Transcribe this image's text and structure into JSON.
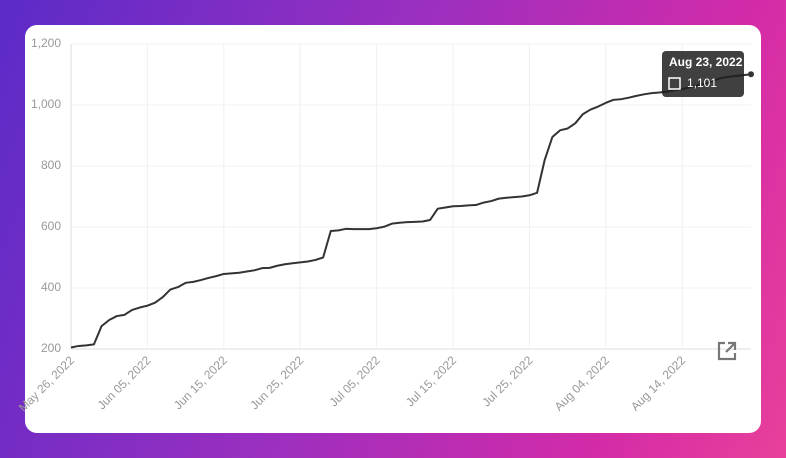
{
  "chart_data": {
    "type": "line",
    "x": [
      "2022-05-26",
      "2022-05-27",
      "2022-05-28",
      "2022-05-29",
      "2022-05-30",
      "2022-05-31",
      "2022-06-01",
      "2022-06-02",
      "2022-06-03",
      "2022-06-04",
      "2022-06-05",
      "2022-06-06",
      "2022-06-07",
      "2022-06-08",
      "2022-06-09",
      "2022-06-10",
      "2022-06-11",
      "2022-06-12",
      "2022-06-13",
      "2022-06-14",
      "2022-06-15",
      "2022-06-16",
      "2022-06-17",
      "2022-06-18",
      "2022-06-19",
      "2022-06-20",
      "2022-06-21",
      "2022-06-22",
      "2022-06-23",
      "2022-06-24",
      "2022-06-25",
      "2022-06-26",
      "2022-06-27",
      "2022-06-28",
      "2022-06-29",
      "2022-06-30",
      "2022-07-01",
      "2022-07-02",
      "2022-07-03",
      "2022-07-04",
      "2022-07-05",
      "2022-07-06",
      "2022-07-07",
      "2022-07-08",
      "2022-07-09",
      "2022-07-10",
      "2022-07-11",
      "2022-07-12",
      "2022-07-13",
      "2022-07-14",
      "2022-07-15",
      "2022-07-16",
      "2022-07-17",
      "2022-07-18",
      "2022-07-19",
      "2022-07-20",
      "2022-07-21",
      "2022-07-22",
      "2022-07-23",
      "2022-07-24",
      "2022-07-25",
      "2022-07-26",
      "2022-07-27",
      "2022-07-28",
      "2022-07-29",
      "2022-07-30",
      "2022-07-31",
      "2022-08-01",
      "2022-08-02",
      "2022-08-03",
      "2022-08-04",
      "2022-08-05",
      "2022-08-06",
      "2022-08-07",
      "2022-08-08",
      "2022-08-09",
      "2022-08-10",
      "2022-08-11",
      "2022-08-12",
      "2022-08-13",
      "2022-08-14",
      "2022-08-15",
      "2022-08-16",
      "2022-08-17",
      "2022-08-18",
      "2022-08-19",
      "2022-08-20",
      "2022-08-21",
      "2022-08-22",
      "2022-08-23"
    ],
    "values": [
      205,
      210,
      212,
      215,
      275,
      295,
      308,
      312,
      328,
      336,
      342,
      352,
      370,
      395,
      403,
      417,
      420,
      426,
      433,
      439,
      446,
      448,
      450,
      454,
      458,
      465,
      466,
      473,
      478,
      481,
      484,
      487,
      492,
      500,
      587,
      589,
      594,
      593,
      593,
      593,
      596,
      601,
      611,
      614,
      616,
      617,
      618,
      623,
      660,
      664,
      668,
      669,
      671,
      672,
      680,
      685,
      693,
      696,
      698,
      700,
      704,
      712,
      820,
      895,
      917,
      923,
      940,
      970,
      985,
      995,
      1007,
      1017,
      1019,
      1024,
      1030,
      1035,
      1039,
      1041,
      1044,
      1048,
      1052,
      1058,
      1065,
      1070,
      1080,
      1088,
      1092,
      1095,
      1098,
      1101
    ],
    "color": "#333333",
    "xlim": [
      "2022-05-26",
      "2022-08-23"
    ],
    "xticks": [
      {
        "value": "2022-05-26",
        "label": "May 26, 2022"
      },
      {
        "value": "2022-06-05",
        "label": "Jun 05, 2022"
      },
      {
        "value": "2022-06-15",
        "label": "Jun 15, 2022"
      },
      {
        "value": "2022-06-25",
        "label": "Jun 25, 2022"
      },
      {
        "value": "2022-07-05",
        "label": "Jul 05, 2022"
      },
      {
        "value": "2022-07-15",
        "label": "Jul 15, 2022"
      },
      {
        "value": "2022-07-25",
        "label": "Jul 25, 2022"
      },
      {
        "value": "2022-08-04",
        "label": "Aug 04, 2022"
      },
      {
        "value": "2022-08-14",
        "label": "Aug 14, 2022"
      }
    ],
    "ylim": [
      200,
      1200
    ],
    "yticks": [
      200,
      400,
      600,
      800,
      {
        "value": 1000,
        "label": "1,000"
      },
      {
        "value": 1200,
        "label": "1,200"
      }
    ],
    "grid": true,
    "tooltip": {
      "title": "Aug 23, 2022",
      "label": "1,101"
    }
  }
}
